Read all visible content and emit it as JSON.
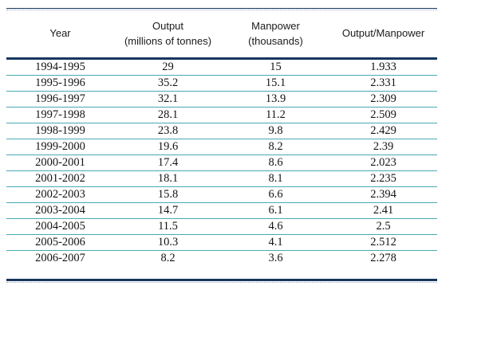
{
  "colors": {
    "navy_border": "#17365D",
    "teal_separator": "#47AAB2",
    "text": "#141414",
    "background": "#ffffff"
  },
  "chart_data": {
    "type": "table",
    "title": "",
    "columns": [
      {
        "label": "Year",
        "sublabel": ""
      },
      {
        "label": "Output",
        "sublabel": "(millions of tonnes)"
      },
      {
        "label": "Manpower",
        "sublabel": "(thousands)"
      },
      {
        "label": "Output/Manpower",
        "sublabel": ""
      }
    ],
    "rows": [
      [
        "1994-1995",
        "29",
        "15",
        "1.933"
      ],
      [
        "1995-1996",
        "35.2",
        "15.1",
        "2.331"
      ],
      [
        "1996-1997",
        "32.1",
        "13.9",
        "2.309"
      ],
      [
        "1997-1998",
        "28.1",
        "11.2",
        "2.509"
      ],
      [
        "1998-1999",
        "23.8",
        "9.8",
        "2.429"
      ],
      [
        "1999-2000",
        "19.6",
        "8.2",
        "2.39"
      ],
      [
        "2000-2001",
        "17.4",
        "8.6",
        "2.023"
      ],
      [
        "2001-2002",
        "18.1",
        "8.1",
        "2.235"
      ],
      [
        "2002-2003",
        "15.8",
        "6.6",
        "2.394"
      ],
      [
        "2003-2004",
        "14.7",
        "6.1",
        "2.41"
      ],
      [
        "2004-2005",
        "11.5",
        "4.6",
        "2.5"
      ],
      [
        "2005-2006",
        "10.3",
        "4.1",
        "2.512"
      ],
      [
        "2006-2007",
        "8.2",
        "3.6",
        "2.278"
      ]
    ]
  }
}
